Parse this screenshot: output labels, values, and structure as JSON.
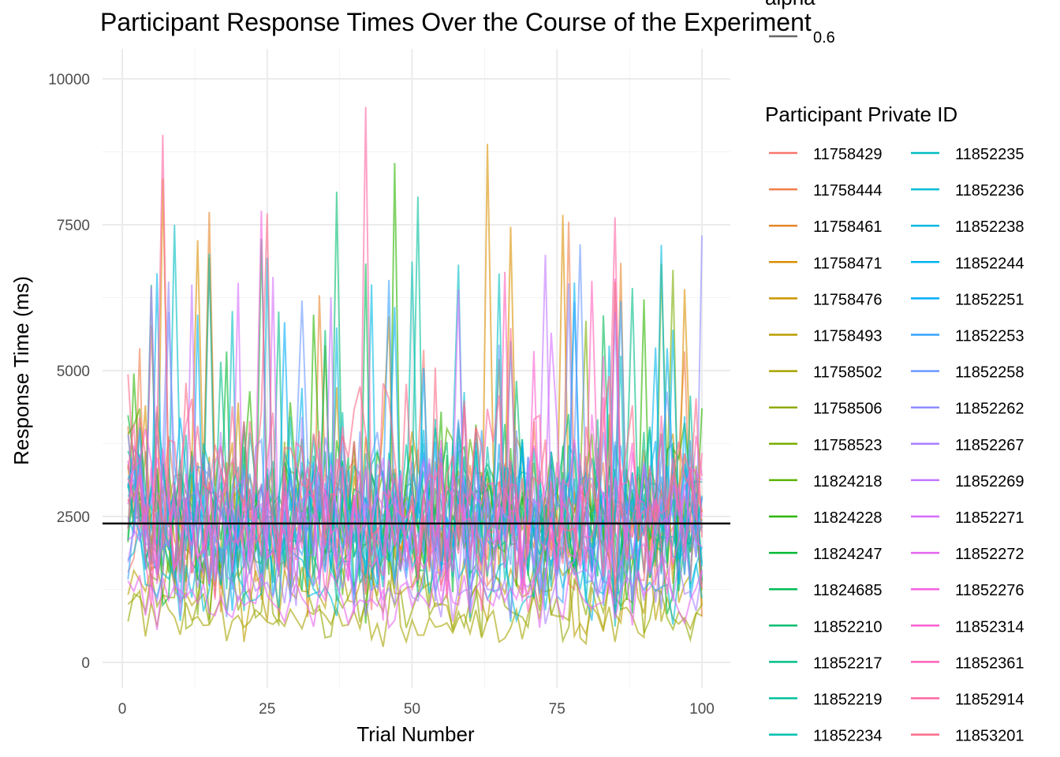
{
  "chart_data": {
    "type": "line",
    "title": "Participant Response Times Over the Course of the Experiment",
    "xlabel": "Trial Number",
    "ylabel": "Response Time (ms)",
    "xlim": [
      1,
      100
    ],
    "ylim": [
      0,
      10000
    ],
    "x_ticks": [
      0,
      25,
      50,
      75,
      100
    ],
    "y_ticks": [
      0,
      2500,
      5000,
      7500,
      10000
    ],
    "grid": true,
    "reference_line": {
      "y": 2380,
      "color": "#000000"
    },
    "alpha_legend": {
      "title": "alpha",
      "value": "0.6"
    },
    "legend_title": "Participant Private ID",
    "legend_position": "right",
    "series": [
      {
        "name": "11758429",
        "color": "#F8766D",
        "mean": 2300,
        "sd": 900
      },
      {
        "name": "11758444",
        "color": "#F07E4A",
        "mean": 2500,
        "sd": 950
      },
      {
        "name": "11758461",
        "color": "#E6862A",
        "mean": 2400,
        "sd": 900
      },
      {
        "name": "11758471",
        "color": "#DA8F00",
        "mean": 2600,
        "sd": 1000
      },
      {
        "name": "11758476",
        "color": "#CB9500",
        "mean": 2400,
        "sd": 900
      },
      {
        "name": "11758493",
        "color": "#BA9E00",
        "mean": 1200,
        "sd": 500
      },
      {
        "name": "11758502",
        "color": "#A7A400",
        "mean": 700,
        "sd": 300
      },
      {
        "name": "11758506",
        "color": "#92A900",
        "mean": 1000,
        "sd": 400
      },
      {
        "name": "11758523",
        "color": "#7AAE00",
        "mean": 2200,
        "sd": 900
      },
      {
        "name": "11824218",
        "color": "#5BB300",
        "mean": 2600,
        "sd": 1100
      },
      {
        "name": "11824228",
        "color": "#2CB600",
        "mean": 2700,
        "sd": 1200
      },
      {
        "name": "11824247",
        "color": "#00B934",
        "mean": 2500,
        "sd": 1000
      },
      {
        "name": "11824685",
        "color": "#00BB55",
        "mean": 2300,
        "sd": 900
      },
      {
        "name": "11852210",
        "color": "#00BD6F",
        "mean": 2400,
        "sd": 950
      },
      {
        "name": "11852217",
        "color": "#00BE87",
        "mean": 2500,
        "sd": 1000
      },
      {
        "name": "11852219",
        "color": "#00C09D",
        "mean": 2600,
        "sd": 1100
      },
      {
        "name": "11852234",
        "color": "#00BFB0",
        "mean": 2400,
        "sd": 950
      },
      {
        "name": "11852235",
        "color": "#00BEC3",
        "mean": 2300,
        "sd": 900
      },
      {
        "name": "11852236",
        "color": "#00BCD6",
        "mean": 1500,
        "sd": 600
      },
      {
        "name": "11852238",
        "color": "#00B9E3",
        "mean": 2400,
        "sd": 900
      },
      {
        "name": "11852244",
        "color": "#00B4EF",
        "mean": 2200,
        "sd": 900
      },
      {
        "name": "11852251",
        "color": "#00ADFA",
        "mean": 2500,
        "sd": 1000
      },
      {
        "name": "11852253",
        "color": "#35A2FF",
        "mean": 2400,
        "sd": 900
      },
      {
        "name": "11852258",
        "color": "#6997FF",
        "mean": 2600,
        "sd": 1100
      },
      {
        "name": "11852262",
        "color": "#8E8CFF",
        "mean": 2300,
        "sd": 900
      },
      {
        "name": "11852267",
        "color": "#AA80FF",
        "mean": 1400,
        "sd": 600
      },
      {
        "name": "11852269",
        "color": "#C276FF",
        "mean": 2200,
        "sd": 900
      },
      {
        "name": "11852271",
        "color": "#D66CFF",
        "mean": 2400,
        "sd": 900
      },
      {
        "name": "11852272",
        "color": "#E764F2",
        "mean": 1100,
        "sd": 400
      },
      {
        "name": "11852276",
        "color": "#F560E2",
        "mean": 2500,
        "sd": 1000
      },
      {
        "name": "11852314",
        "color": "#FC5FCF",
        "mean": 2400,
        "sd": 950
      },
      {
        "name": "11852361",
        "color": "#FF61BA",
        "mean": 2300,
        "sd": 900
      },
      {
        "name": "11852914",
        "color": "#FF65A3",
        "mean": 2800,
        "sd": 1200
      },
      {
        "name": "11853201",
        "color": "#FD6B87",
        "mean": 3000,
        "sd": 1300
      }
    ]
  }
}
